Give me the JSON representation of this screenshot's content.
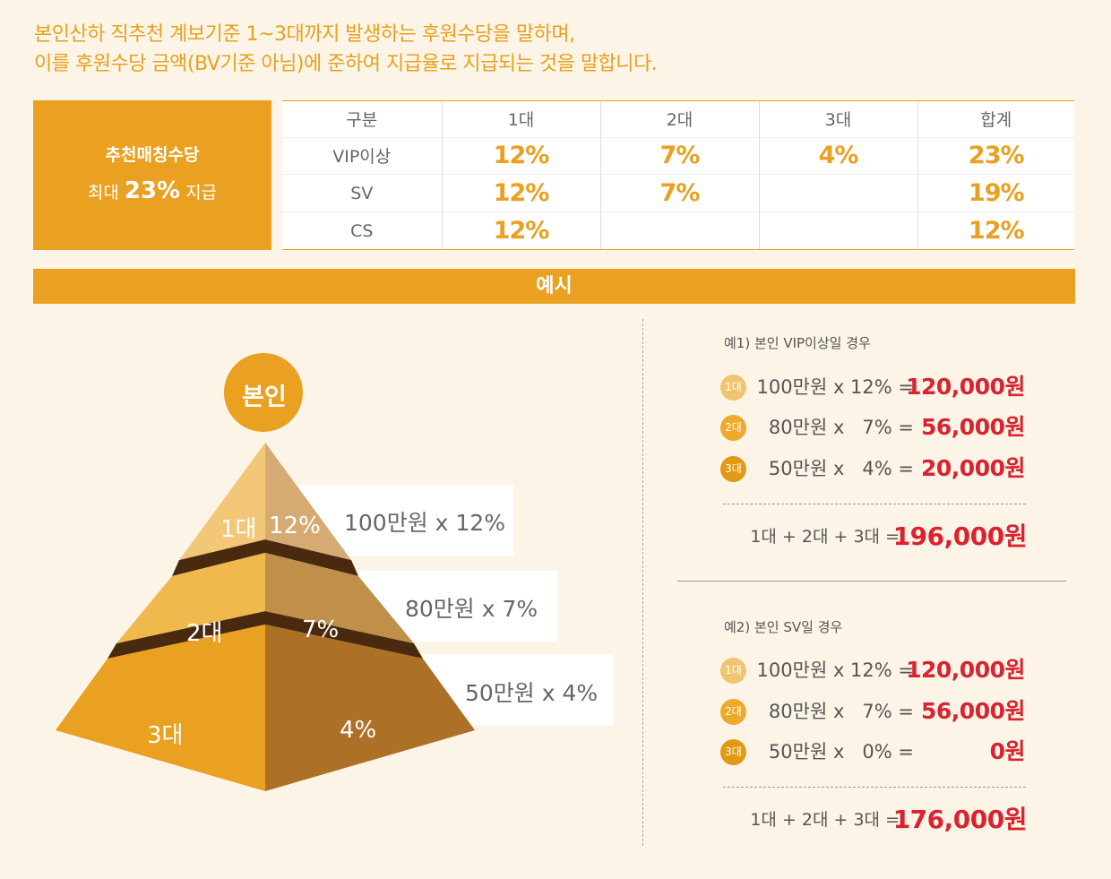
{
  "intro": {
    "line1": "본인산하 직추천 계보기준 1~3대까지 발생하는 후원수당을 말하며,",
    "line2": "이를 후원수당 금액(BV기준 아님)에 준하여 지급율로 지급되는 것을 말합니다."
  },
  "badge": {
    "title": "추천매칭수당",
    "prefix": "최대 ",
    "value": "23%",
    "suffix": " 지급"
  },
  "table": {
    "headers": [
      "구분",
      "1대",
      "2대",
      "3대",
      "합계"
    ],
    "rows": [
      {
        "label": "VIP이상",
        "g1": "12%",
        "g2": "7%",
        "g3": "4%",
        "total": "23%"
      },
      {
        "label": "SV",
        "g1": "12%",
        "g2": "7%",
        "g3": "",
        "total": "19%"
      },
      {
        "label": "CS",
        "g1": "12%",
        "g2": "",
        "g3": "",
        "total": "12%"
      }
    ]
  },
  "example_title": "예시",
  "pyramid": {
    "top_label": "본인",
    "levels": [
      {
        "gen": "1대",
        "rate": "12%",
        "amount": "100만원 x 12%"
      },
      {
        "gen": "2대",
        "rate": "7%",
        "amount": "80만원 x 7%"
      },
      {
        "gen": "3대",
        "rate": "4%",
        "amount": "50만원 x 4%"
      }
    ]
  },
  "examples": [
    {
      "heading": "예1) 본인 VIP이상일 경우",
      "rows": [
        {
          "badge": "1대",
          "expr": "100만원 x 12% =",
          "result": "120,000원"
        },
        {
          "badge": "2대",
          "expr": "80만원 x   7% =",
          "result": "56,000원"
        },
        {
          "badge": "3대",
          "expr": "50만원 x   4% =",
          "result": "20,000원"
        }
      ],
      "total_expr": "1대 + 2대 + 3대 =",
      "total": "196,000원"
    },
    {
      "heading": "예2) 본인 SV일 경우",
      "rows": [
        {
          "badge": "1대",
          "expr": "100만원 x 12% =",
          "result": "120,000원"
        },
        {
          "badge": "2대",
          "expr": "80만원 x   7% =",
          "result": "56,000원"
        },
        {
          "badge": "3대",
          "expr": "50만원 x   0% =",
          "result": "0원"
        }
      ],
      "total_expr": "1대 + 2대 + 3대 =",
      "total": "176,000원"
    }
  ],
  "colors": {
    "accent": "#eaa020",
    "result_red": "#d9232f",
    "badge_g1": "#f0c572",
    "badge_g2": "#eeaa2a",
    "badge_g3": "#e19a14"
  }
}
